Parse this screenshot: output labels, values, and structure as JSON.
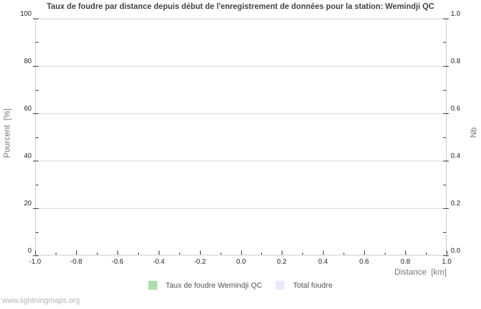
{
  "watermark": "www.lightningmaps.org",
  "chart_data": {
    "type": "line",
    "title": "Taux de foudre par distance depuis début de l'enregistrement de données pour la station: Wemindji QC",
    "x_axis": {
      "label": "Distance  [km]",
      "min": -1.0,
      "max": 1.0,
      "major_ticks": [
        -1.0,
        -0.8,
        -0.6,
        -0.4,
        -0.2,
        0.0,
        0.2,
        0.4,
        0.6,
        0.8,
        1.0
      ],
      "tick_labels": [
        "-1.0",
        "-0.8",
        "-0.6",
        "-0.4",
        "-0.2",
        "0.0",
        "0.2",
        "0.4",
        "0.6",
        "0.8",
        "1.0"
      ],
      "minor_tick_step": 0.1
    },
    "y_axis_left": {
      "label": "Pourcent  [%]",
      "min": 0,
      "max": 100,
      "major_ticks": [
        0,
        20,
        40,
        60,
        80,
        100
      ],
      "tick_labels": [
        "0",
        "20",
        "40",
        "60",
        "80",
        "100"
      ],
      "minor_tick_step": 10,
      "gridlines": [
        20,
        40,
        60,
        80
      ]
    },
    "y_axis_right": {
      "label": "Nb",
      "min": 0.0,
      "max": 1.0,
      "major_ticks": [
        0.0,
        0.2,
        0.4,
        0.6,
        0.8,
        1.0
      ],
      "tick_labels": [
        "0.0",
        "0.2",
        "0.4",
        "0.6",
        "0.8",
        "1.0"
      ],
      "minor_tick_step": 0.1
    },
    "grid": "horizontal-major-only",
    "legend_position": "bottom-center",
    "series": [
      {
        "name": "Taux de foudre Wemindji QC",
        "color": "#aedcab",
        "axis": "left",
        "points": []
      },
      {
        "name": "Total foudre",
        "color": "#e9e9f7",
        "axis": "right",
        "points": []
      }
    ],
    "colors": {
      "background": "#ffffff",
      "title_text": "#444444",
      "axis_border": "#cccccc",
      "gridline": "#d9d9d9",
      "tick_mark": "#333333",
      "tick_label": "#222222",
      "axis_title": "#75757d",
      "legend_label": "#555555",
      "watermark": "#b3b3b3"
    }
  }
}
